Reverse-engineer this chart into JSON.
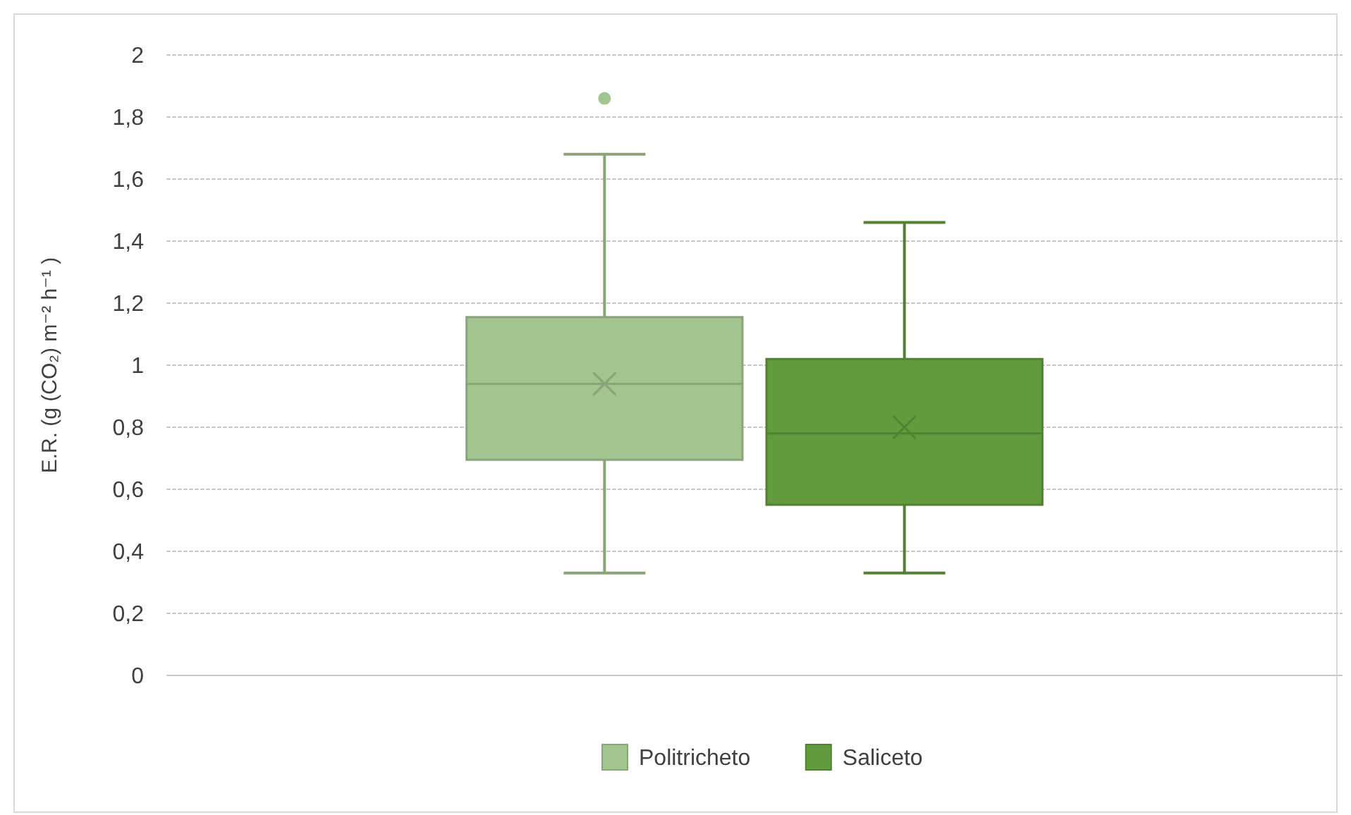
{
  "chart_data": {
    "type": "box",
    "ylabel": "E.R. (g (CO₂) m⁻² h⁻¹ )",
    "categories": [
      null
    ],
    "series": [
      {
        "name": "Politricheto",
        "color": "#a2c48f",
        "boxes": [
          {
            "low": 0.33,
            "q1": 0.695,
            "median": 0.94,
            "q3": 1.155,
            "high": 1.68,
            "mean": 0.94,
            "outliers": [
              1.86
            ]
          }
        ]
      },
      {
        "name": "Saliceto",
        "color": "#629a3e",
        "boxes": [
          {
            "low": 0.33,
            "q1": 0.55,
            "median": 0.78,
            "q3": 1.02,
            "high": 1.46,
            "mean": 0.8
          }
        ]
      }
    ],
    "ylim": [
      0,
      2
    ],
    "yticks": [
      0,
      {
        "value": 0.2,
        "label": "0,2"
      },
      {
        "value": 0.4,
        "label": "0,4"
      },
      {
        "value": 0.6,
        "label": "0,6"
      },
      {
        "value": 0.8,
        "label": "0,8"
      },
      1,
      {
        "value": 1.2,
        "label": "1,2"
      },
      {
        "value": 1.4,
        "label": "1,4"
      },
      {
        "value": 1.6,
        "label": "1,6"
      },
      {
        "value": 1.8,
        "label": "1,8"
      },
      2
    ],
    "grid": "y",
    "legend": "bottom",
    "marker": "cross"
  }
}
